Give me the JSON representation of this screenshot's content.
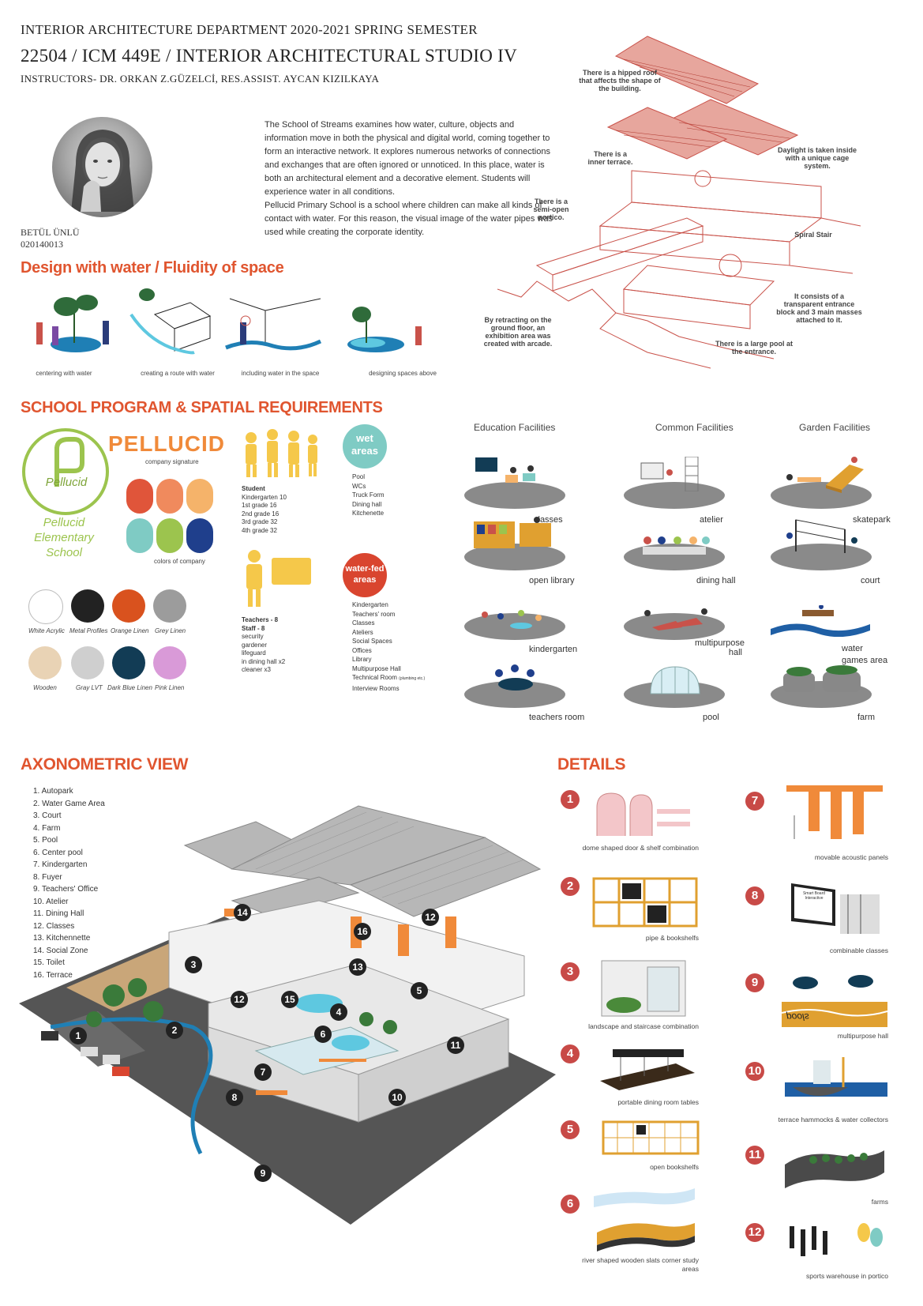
{
  "header": {
    "line1": "INTERIOR ARCHITECTURE DEPARTMENT 2020-2021 SPRING SEMESTER",
    "line2": "22504 / ICM 449E / INTERIOR ARCHITECTURAL STUDIO IV",
    "line3": "INSTRUCTORS- DR. ORKAN Z.GÜZELCİ, RES.ASSIST. AYCAN KIZILKAYA"
  },
  "student": {
    "name": "BETÜL ÜNLÜ",
    "id": "020140013"
  },
  "intro": {
    "p1": "The School of Streams examines how water, culture, objects and information move in both the physical and digital world, coming together to form an interactive network. It explores numerous networks of connections and exchanges that are often ignored or unnoticed. In this place, water is both an architectural element and a decorative element. Students will experience water in all conditions.",
    "p2": "Pellucid Primary School is a school where children can make all kinds of contact with water. For this reason, the visual image of the water pipes was used while creating the corporate identity."
  },
  "diagram_notes": {
    "roof": "There is a hipped roof that affects the shape of the building.",
    "inner_terrace": "There is a inner terrace.",
    "daylight": "Daylight is taken inside with a unique cage system.",
    "portico": "There is a semi-open portico.",
    "stair": "Spiral Stair",
    "masses": "It consists of a transparent entrance block and 3 main masses attached to it.",
    "exhibition": "By retracting on the ground floor, an exhibition area was created with arcade.",
    "pool": "There is a large pool at the entrance."
  },
  "design_water": {
    "title": "Design with water / Fluidity of space",
    "captions": [
      "centering with water",
      "creating a route with water",
      "including water in the space",
      "designing spaces above"
    ]
  },
  "program": {
    "title": "SCHOOL PROGRAM & SPATIAL REQUIREMENTS",
    "logo_text": "Pellucid",
    "logo_school": "Pellucid Elementary School",
    "brand": "PELLUCID",
    "brand_sub": "company signature",
    "colors_caption": "colors of company",
    "company_colors": [
      "#e0553a",
      "#f08a5d",
      "#f5b36a",
      "#7fcbc4",
      "#9cc44e",
      "#1f3f8c"
    ],
    "materials": [
      {
        "name": "White Acrylic",
        "color": "#ffffff"
      },
      {
        "name": "Metal Profiles",
        "color": "#222222"
      },
      {
        "name": "Orange Linen",
        "color": "#d9521e"
      },
      {
        "name": "Grey Linen",
        "color": "#9c9c9c"
      },
      {
        "name": "Wooden",
        "color": "#e9d3b5"
      },
      {
        "name": "Gray LVT",
        "color": "#cfcfcf"
      },
      {
        "name": "Dark Blue Linen",
        "color": "#123c55"
      },
      {
        "name": "Pink Linen",
        "color": "#d99ad8"
      }
    ],
    "student_block": {
      "title": "Student",
      "items": [
        "Kindergarten 10",
        "1st grade 16",
        "2nd grade 16",
        "3rd grade 32",
        "4th grade 32"
      ]
    },
    "teacher_block": {
      "title1": "Teachers - 8",
      "title2": "Staff - 8",
      "items": [
        "security",
        "gardener",
        "lifeguard",
        "in dining hall x2",
        "cleaner x3"
      ]
    },
    "wet": {
      "badge1": "wet",
      "badge2": "areas",
      "items": [
        "Pool",
        "WCs",
        "Truck Form",
        "Dining hall",
        "Kitchenette"
      ]
    },
    "waterfed": {
      "badge1": "water-fed",
      "badge2": "areas",
      "items": [
        "Kindergarten",
        "Teachers' room",
        "Classes",
        "Ateliers",
        "Social Spaces",
        "Offices",
        "Library",
        "Multipurpose Hall",
        "Technical Room",
        "Interview Rooms"
      ],
      "tech_note": "(plumbing etc.)"
    }
  },
  "facilities": {
    "education": {
      "title": "Education Facilities",
      "items": [
        "classes",
        "open library",
        "kindergarten",
        "teachers room"
      ]
    },
    "common": {
      "title": "Common Facilities",
      "items": [
        "atelier",
        "dining hall",
        "multipurpose hall",
        "pool"
      ]
    },
    "garden": {
      "title": "Garden Facilities",
      "items": [
        "skatepark",
        "court",
        "water games area",
        "farm"
      ]
    }
  },
  "axo": {
    "title": "AXONOMETRIC VIEW",
    "legend": [
      "1. Autopark",
      "2. Water Game Area",
      "3. Court",
      "4. Farm",
      "5. Pool",
      "6. Center pool",
      "7. Kindergarten",
      "8. Fuyer",
      "9. Teachers' Office",
      "10. Atelier",
      "11. Dining Hall",
      "12. Classes",
      "13. Kitchennette",
      "14. Social Zone",
      "15. Toilet",
      "16. Terrace"
    ]
  },
  "details": {
    "title": "DETAILS",
    "items": [
      {
        "n": "1",
        "cap": "dome shaped door & shelf combination"
      },
      {
        "n": "2",
        "cap": "pipe & bookshelfs"
      },
      {
        "n": "3",
        "cap": "landscape and staircase combination"
      },
      {
        "n": "4",
        "cap": "portable dining room tables"
      },
      {
        "n": "5",
        "cap": "open bookshelfs"
      },
      {
        "n": "6",
        "cap": "river shaped wooden slats corner study areas"
      },
      {
        "n": "7",
        "cap": "movable acoustic panels"
      },
      {
        "n": "8",
        "cap": "combinable classes"
      },
      {
        "n": "9",
        "cap": "multipurpose hall"
      },
      {
        "n": "10",
        "cap": "terrace hammocks & water collectors"
      },
      {
        "n": "11",
        "cap": "farms"
      },
      {
        "n": "12",
        "cap": "sports warehouse in portico"
      }
    ],
    "board_text": "Smart Board Interactive",
    "signage": "pools"
  }
}
